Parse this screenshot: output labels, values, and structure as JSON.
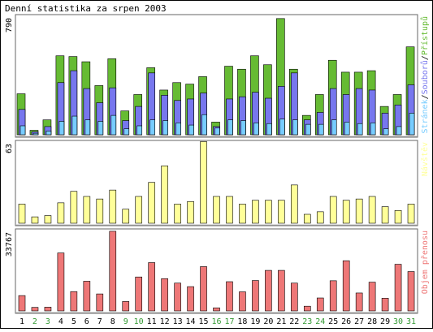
{
  "chart_data": [
    {
      "type": "bar",
      "title": "Denní statistika za srpen 2003",
      "categories": [
        "1",
        "2",
        "3",
        "4",
        "5",
        "6",
        "7",
        "8",
        "9",
        "10",
        "11",
        "12",
        "13",
        "14",
        "15",
        "16",
        "17",
        "18",
        "19",
        "20",
        "21",
        "22",
        "23",
        "24",
        "25",
        "26",
        "27",
        "28",
        "29",
        "30",
        "31"
      ],
      "weekend_days": [
        "2",
        "3",
        "9",
        "10",
        "16",
        "17",
        "23",
        "24",
        "30",
        "31"
      ],
      "ymax_label": "790",
      "ylim": [
        0,
        790
      ],
      "legend": [
        "Stránek",
        "/",
        "Souborů",
        "/",
        "Přístupů"
      ],
      "series": [
        {
          "name": "Přístupů",
          "color": "#66bb33",
          "values": [
            275,
            30,
            100,
            530,
            525,
            490,
            330,
            510,
            160,
            270,
            450,
            300,
            350,
            340,
            390,
            85,
            460,
            440,
            530,
            470,
            780,
            440,
            130,
            270,
            500,
            420,
            420,
            430,
            190,
            270,
            590
          ]
        },
        {
          "name": "Souborů",
          "color": "#7777ee",
          "values": [
            170,
            20,
            55,
            350,
            430,
            310,
            215,
            315,
            95,
            190,
            415,
            265,
            230,
            240,
            280,
            55,
            240,
            255,
            285,
            245,
            325,
            415,
            100,
            150,
            310,
            270,
            310,
            300,
            145,
            200,
            335
          ]
        },
        {
          "name": "Stránek",
          "color": "#77ccff",
          "values": [
            60,
            10,
            25,
            90,
            125,
            100,
            90,
            130,
            40,
            60,
            100,
            95,
            80,
            65,
            135,
            45,
            100,
            95,
            80,
            75,
            105,
            100,
            70,
            70,
            100,
            85,
            75,
            80,
            40,
            55,
            145
          ]
        }
      ]
    },
    {
      "type": "bar",
      "categories": [
        "1",
        "2",
        "3",
        "4",
        "5",
        "6",
        "7",
        "8",
        "9",
        "10",
        "11",
        "12",
        "13",
        "14",
        "15",
        "16",
        "17",
        "18",
        "19",
        "20",
        "21",
        "22",
        "23",
        "24",
        "25",
        "26",
        "27",
        "28",
        "29",
        "30",
        "31"
      ],
      "ymax_label": "63",
      "ylim": [
        0,
        63
      ],
      "series": [
        {
          "name": "Návštěv",
          "color": "#ffff99",
          "values": [
            15,
            5,
            6,
            16,
            25,
            21,
            19,
            26,
            11,
            21,
            32,
            45,
            15,
            17,
            64,
            21,
            21,
            15,
            18,
            18,
            18,
            30,
            7,
            9,
            21,
            18,
            19,
            21,
            13,
            10,
            15
          ]
        }
      ]
    },
    {
      "type": "bar",
      "categories": [
        "1",
        "2",
        "3",
        "4",
        "5",
        "6",
        "7",
        "8",
        "9",
        "10",
        "11",
        "12",
        "13",
        "14",
        "15",
        "16",
        "17",
        "18",
        "19",
        "20",
        "21",
        "22",
        "23",
        "24",
        "25",
        "26",
        "27",
        "28",
        "29",
        "30",
        "31"
      ],
      "ymax_label": "33767",
      "ylim": [
        0,
        33767
      ],
      "series": [
        {
          "name": "Objem přenosu",
          "color": "#ee7777",
          "values": [
            6500,
            1500,
            1600,
            24600,
            8200,
            12600,
            7200,
            33800,
            4000,
            14400,
            20500,
            13700,
            11800,
            10300,
            18800,
            1300,
            12400,
            8100,
            12900,
            17200,
            17200,
            11800,
            2000,
            5500,
            12800,
            21300,
            7600,
            12200,
            5400,
            19800,
            16700
          ]
        }
      ]
    }
  ]
}
